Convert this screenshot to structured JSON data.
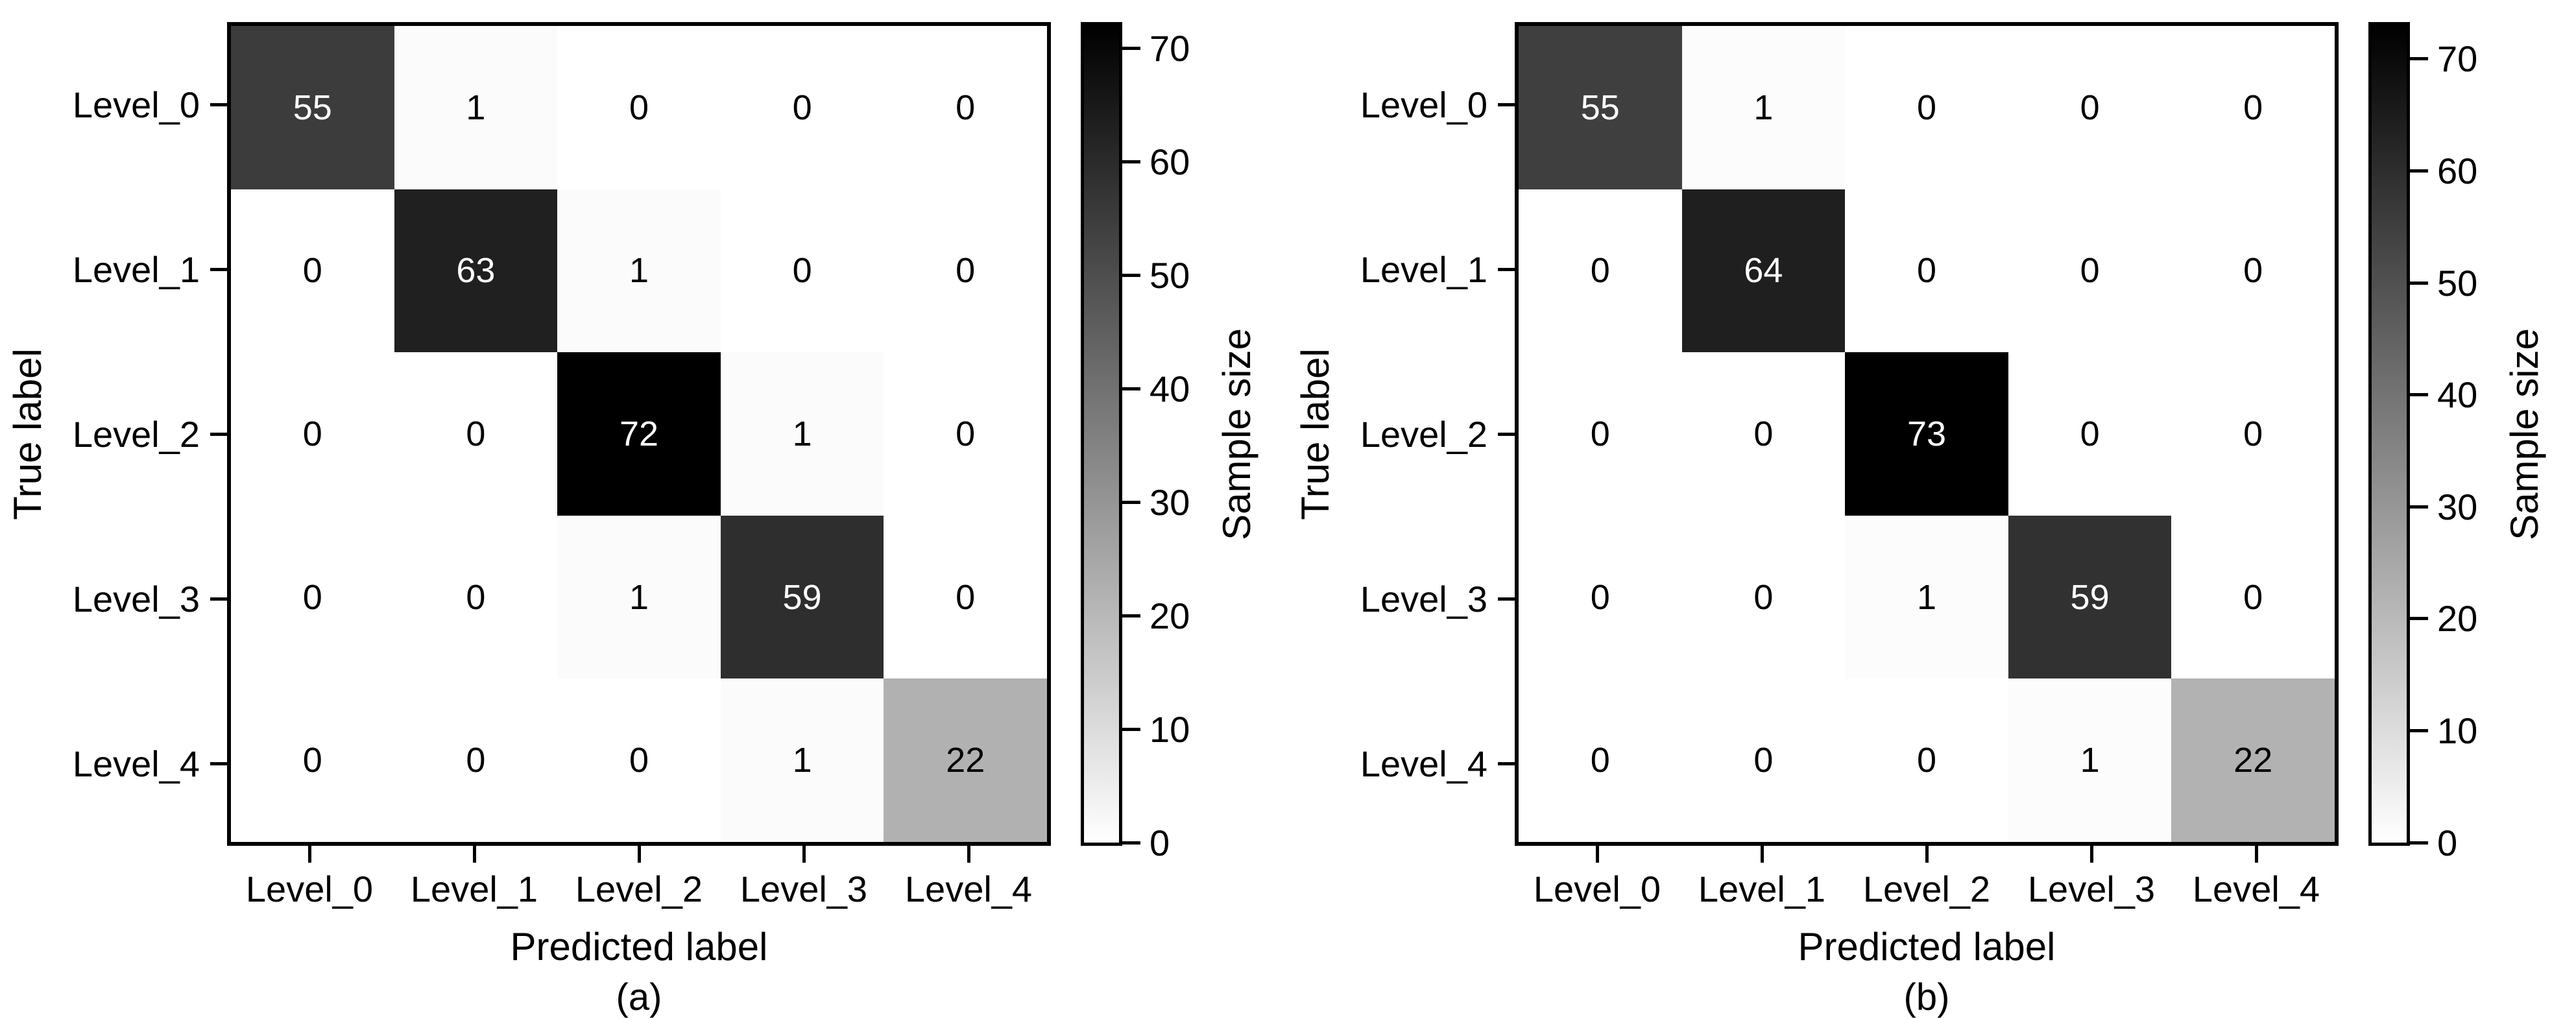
{
  "figure": {
    "background": "#ffffff",
    "axis_color": "#000000"
  },
  "chart_data": [
    {
      "type": "heatmap",
      "caption": "(a)",
      "xlabel": "Predicted label",
      "ylabel": "True label",
      "x_categories": [
        "Level_0",
        "Level_1",
        "Level_2",
        "Level_3",
        "Level_4"
      ],
      "y_categories": [
        "Level_0",
        "Level_1",
        "Level_2",
        "Level_3",
        "Level_4"
      ],
      "values": [
        [
          55,
          1,
          0,
          0,
          0
        ],
        [
          0,
          63,
          1,
          0,
          0
        ],
        [
          0,
          0,
          72,
          1,
          0
        ],
        [
          0,
          0,
          1,
          59,
          0
        ],
        [
          0,
          0,
          0,
          1,
          22
        ]
      ],
      "vmin": 0,
      "vmax": 72,
      "colormap": "linear grayscale, white at 0 to black at vmax",
      "annotations": "each cell shows its count",
      "colorbar_label": "Sample size",
      "colorbar_ticks": [
        0,
        10,
        20,
        30,
        40,
        50,
        60,
        70
      ],
      "colorbar_position": "right",
      "grid": false
    },
    {
      "type": "heatmap",
      "caption": "(b)",
      "xlabel": "Predicted label",
      "ylabel": "True label",
      "x_categories": [
        "Level_0",
        "Level_1",
        "Level_2",
        "Level_3",
        "Level_4"
      ],
      "y_categories": [
        "Level_0",
        "Level_1",
        "Level_2",
        "Level_3",
        "Level_4"
      ],
      "values": [
        [
          55,
          1,
          0,
          0,
          0
        ],
        [
          0,
          64,
          0,
          0,
          0
        ],
        [
          0,
          0,
          73,
          0,
          0
        ],
        [
          0,
          0,
          1,
          59,
          0
        ],
        [
          0,
          0,
          0,
          1,
          22
        ]
      ],
      "vmin": 0,
      "vmax": 73,
      "colormap": "linear grayscale, white at 0 to black at vmax",
      "annotations": "each cell shows its count",
      "colorbar_label": "Sample size",
      "colorbar_ticks": [
        0,
        10,
        20,
        30,
        40,
        50,
        60,
        70
      ],
      "colorbar_position": "right",
      "grid": false
    }
  ]
}
